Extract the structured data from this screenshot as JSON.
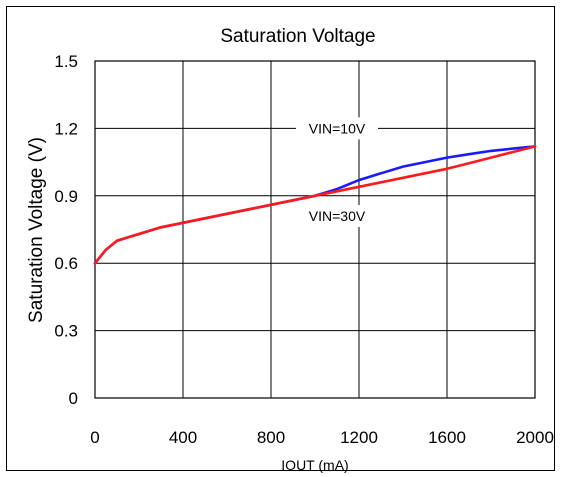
{
  "chart_data": {
    "type": "line",
    "title": "Saturation Voltage",
    "xlabel": "IOUT (mA)",
    "ylabel": "Saturation Voltage (V)",
    "xlim": [
      0,
      2000
    ],
    "ylim": [
      0,
      1.5
    ],
    "x_ticks": [
      "0",
      "400",
      "800",
      "1200",
      "1600",
      "2000"
    ],
    "y_ticks": [
      "0",
      "0.3",
      "0.6",
      "0.9",
      "1.2",
      "1.5"
    ],
    "grid": true,
    "series": [
      {
        "name": "VIN=10V",
        "color": "#1a1aff",
        "x": [
          0,
          50,
          100,
          200,
          300,
          400,
          500,
          600,
          700,
          800,
          900,
          1000,
          1100,
          1200,
          1300,
          1400,
          1500,
          1600,
          1700,
          1800,
          1900,
          2000
        ],
        "y": [
          0.6,
          0.66,
          0.7,
          0.73,
          0.76,
          0.78,
          0.8,
          0.82,
          0.84,
          0.86,
          0.88,
          0.9,
          0.93,
          0.97,
          1.0,
          1.03,
          1.05,
          1.07,
          1.085,
          1.1,
          1.11,
          1.12
        ]
      },
      {
        "name": "VIN=30V",
        "color": "#ff1a1a",
        "x": [
          0,
          50,
          100,
          200,
          300,
          400,
          500,
          600,
          700,
          800,
          900,
          1000,
          1100,
          1200,
          1300,
          1400,
          1500,
          1600,
          1700,
          1800,
          1900,
          2000
        ],
        "y": [
          0.6,
          0.66,
          0.7,
          0.73,
          0.76,
          0.78,
          0.8,
          0.82,
          0.84,
          0.86,
          0.88,
          0.9,
          0.92,
          0.94,
          0.96,
          0.98,
          1.0,
          1.02,
          1.045,
          1.07,
          1.095,
          1.12
        ]
      }
    ],
    "annotations": [
      {
        "text": "VIN=10V",
        "x": 1100,
        "y": 1.2
      },
      {
        "text": "VIN=30V",
        "x": 1100,
        "y": 0.81
      }
    ]
  }
}
